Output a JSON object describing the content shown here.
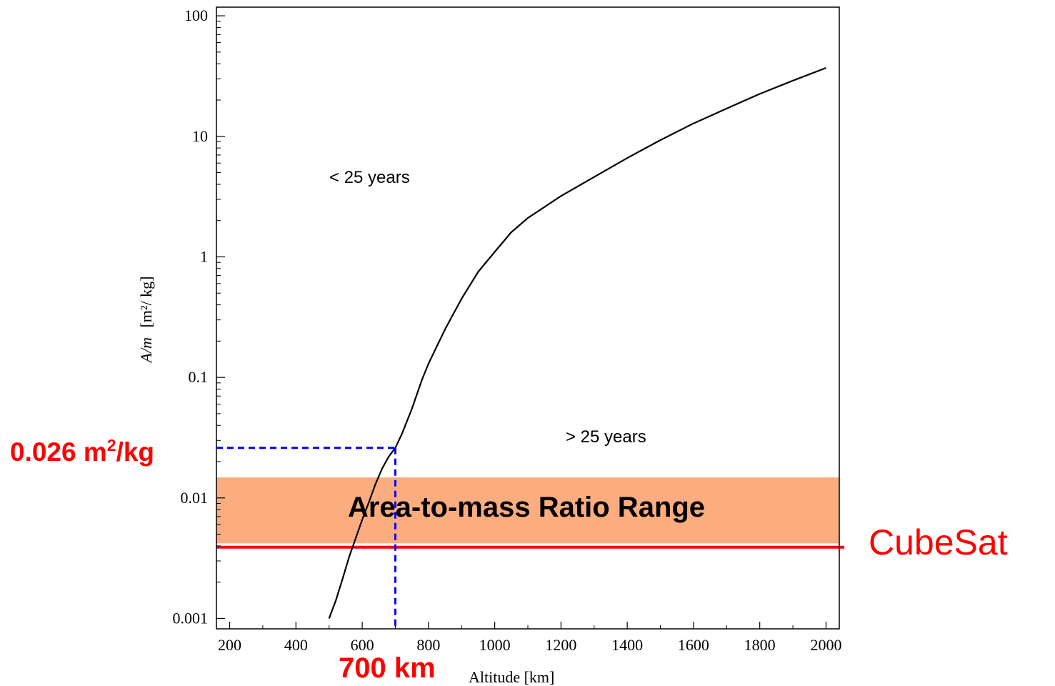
{
  "chart_data": {
    "type": "line",
    "xlabel": "Altitude [km]",
    "ylabel_main": "A/m",
    "ylabel_unit": "[m²/ kg]",
    "y_scale": "log",
    "xlim": [
      160,
      2040
    ],
    "ylim": [
      0.00082,
      118
    ],
    "x_ticks": [
      200,
      400,
      600,
      800,
      1000,
      1200,
      1400,
      1600,
      1800,
      2000
    ],
    "x_tick_labels": [
      "200",
      "400",
      "600",
      "800",
      "1000",
      "1200",
      "1400",
      "1600",
      "1800",
      "2000"
    ],
    "y_ticks": [
      0.001,
      0.01,
      0.1,
      1,
      10,
      100
    ],
    "y_tick_labels": [
      "0.001",
      "0.01",
      "0.1",
      "1",
      "10",
      "100"
    ],
    "grid": false,
    "series": [
      {
        "color": "#000000",
        "x": [
          500,
          520,
          540,
          560,
          580,
          600,
          620,
          640,
          660,
          680,
          700,
          720,
          750,
          780,
          800,
          850,
          900,
          950,
          1000,
          1050,
          1100,
          1200,
          1300,
          1400,
          1500,
          1600,
          1700,
          1800,
          1900,
          2000
        ],
        "y": [
          0.001,
          0.0014,
          0.0021,
          0.0032,
          0.0046,
          0.0066,
          0.0092,
          0.013,
          0.0175,
          0.022,
          0.026,
          0.034,
          0.055,
          0.095,
          0.13,
          0.25,
          0.45,
          0.75,
          1.1,
          1.6,
          2.1,
          3.2,
          4.6,
          6.6,
          9.3,
          12.8,
          17,
          22.5,
          29,
          37
        ]
      }
    ],
    "region_labels": {
      "above": "< 25 years",
      "below": "> 25 years"
    },
    "band": {
      "label": "Area-to-mass Ratio Range",
      "y_low": 0.0042,
      "y_high": 0.0148,
      "color": "#fbad80"
    },
    "cubesat_line": {
      "label": "CubeSat",
      "y": 0.0039,
      "color": "#ff0000"
    },
    "marker": {
      "x": 700,
      "y": 0.026,
      "x_label": "700 km",
      "y_label_value": "0.026 m",
      "y_label_sup": "2",
      "y_label_unit": "/kg",
      "color": "#0000ff",
      "label_color": "#ff0000"
    }
  }
}
